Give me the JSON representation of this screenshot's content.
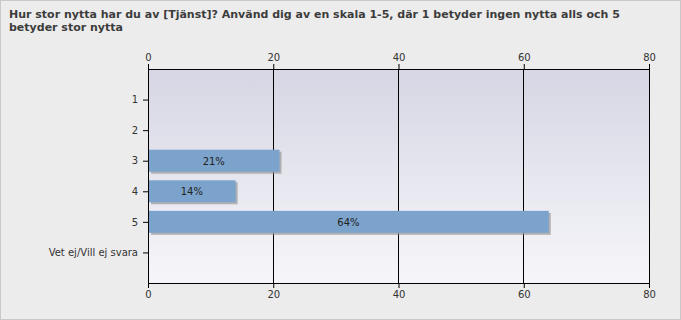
{
  "chart_data": {
    "type": "bar",
    "orientation": "horizontal",
    "title": "Hur stor nytta har du av [Tjänst]? Använd dig av en skala 1-5, där 1 betyder ingen nytta alls och 5 betyder stor nytta",
    "categories": [
      "1",
      "2",
      "3",
      "4",
      "5",
      "Vet ej/Vill ej svara"
    ],
    "values": [
      0,
      0,
      21,
      14,
      64,
      0
    ],
    "value_labels": [
      null,
      null,
      "21%",
      "14%",
      "64%",
      null
    ],
    "data_labels": true,
    "color": "#7ba3cb",
    "xlim": [
      0,
      80
    ],
    "xticks": [
      0,
      20,
      40,
      60,
      80
    ],
    "grid": true
  }
}
